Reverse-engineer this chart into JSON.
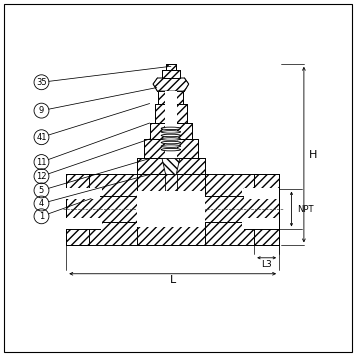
{
  "background_color": "#ffffff",
  "line_color": "#000000",
  "hatch_color": "#000000",
  "part_labels": [
    "35",
    "9",
    "41",
    "11",
    "12",
    "5",
    "4",
    "1"
  ],
  "dim_labels": [
    "H",
    "NPT",
    "L3",
    "L"
  ],
  "fig_width": 3.56,
  "fig_height": 3.56,
  "dpi": 100
}
